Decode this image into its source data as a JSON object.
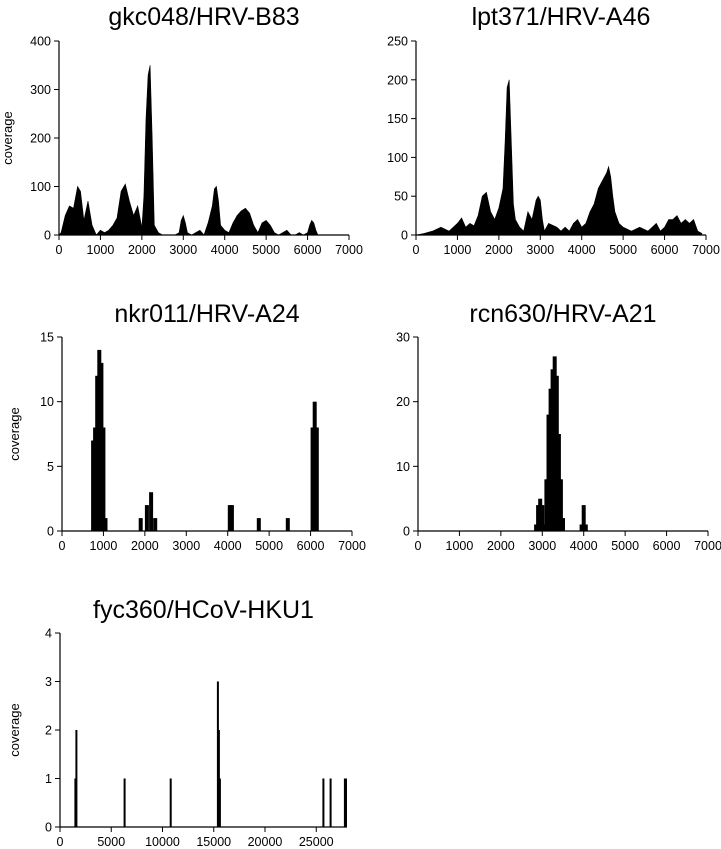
{
  "chart_data": [
    {
      "type": "area",
      "title": "gkc048/HRV-B83",
      "ylabel": "coverage",
      "xlim": [
        0,
        7000
      ],
      "ylim": [
        0,
        400
      ],
      "xticks": [
        "0",
        "1000",
        "2000",
        "3000",
        "4000",
        "5000",
        "6000",
        "7000"
      ],
      "yticks": [
        "0",
        "100",
        "200",
        "300",
        "400"
      ],
      "x": [
        0,
        50,
        150,
        250,
        350,
        450,
        520,
        600,
        700,
        800,
        900,
        1000,
        1100,
        1200,
        1300,
        1400,
        1500,
        1600,
        1700,
        1800,
        1900,
        2000,
        2050,
        2100,
        2150,
        2200,
        2250,
        2300,
        2400,
        2500,
        2600,
        2700,
        2800,
        2900,
        2950,
        3000,
        3050,
        3100,
        3200,
        3300,
        3400,
        3500,
        3600,
        3700,
        3750,
        3800,
        3850,
        3900,
        4000,
        4100,
        4200,
        4300,
        4400,
        4500,
        4600,
        4700,
        4800,
        4900,
        5000,
        5100,
        5200,
        5300,
        5400,
        5500,
        5600,
        5700,
        5800,
        5900,
        6000,
        6050,
        6100,
        6150,
        6200,
        6250,
        6300,
        6400,
        6500,
        6600,
        6700,
        6800,
        6900,
        7000
      ],
      "values": [
        0,
        5,
        40,
        60,
        55,
        100,
        90,
        30,
        70,
        20,
        0,
        10,
        5,
        10,
        20,
        35,
        90,
        105,
        70,
        40,
        60,
        15,
        80,
        240,
        330,
        350,
        200,
        20,
        5,
        0,
        0,
        0,
        0,
        5,
        30,
        40,
        25,
        5,
        0,
        5,
        10,
        0,
        25,
        60,
        95,
        100,
        70,
        20,
        10,
        5,
        25,
        40,
        50,
        55,
        45,
        20,
        5,
        25,
        30,
        20,
        5,
        0,
        5,
        10,
        0,
        0,
        5,
        0,
        5,
        20,
        30,
        25,
        10,
        0,
        0,
        0,
        0,
        0,
        0,
        0,
        0,
        0
      ]
    },
    {
      "type": "area",
      "title": "lpt371/HRV-A46",
      "ylabel": "",
      "xlim": [
        0,
        7000
      ],
      "ylim": [
        0,
        250
      ],
      "xticks": [
        "0",
        "1000",
        "2000",
        "3000",
        "4000",
        "5000",
        "6000",
        "7000"
      ],
      "yticks": [
        "0",
        "50",
        "100",
        "150",
        "200",
        "250"
      ],
      "x": [
        0,
        200,
        400,
        600,
        800,
        1000,
        1100,
        1200,
        1300,
        1400,
        1500,
        1600,
        1700,
        1800,
        1900,
        2000,
        2100,
        2150,
        2200,
        2250,
        2300,
        2350,
        2400,
        2500,
        2600,
        2700,
        2800,
        2900,
        2950,
        3000,
        3050,
        3100,
        3200,
        3400,
        3500,
        3600,
        3700,
        3800,
        3900,
        4000,
        4100,
        4200,
        4300,
        4400,
        4500,
        4600,
        4650,
        4700,
        4750,
        4800,
        4900,
        5000,
        5200,
        5400,
        5600,
        5800,
        5900,
        6000,
        6100,
        6200,
        6300,
        6400,
        6500,
        6600,
        6700,
        6800,
        6900
      ],
      "values": [
        0,
        2,
        5,
        10,
        5,
        15,
        22,
        10,
        15,
        12,
        25,
        50,
        55,
        30,
        20,
        35,
        60,
        120,
        190,
        200,
        120,
        40,
        20,
        10,
        5,
        30,
        20,
        45,
        50,
        45,
        20,
        5,
        15,
        10,
        5,
        10,
        5,
        15,
        20,
        10,
        15,
        30,
        40,
        60,
        70,
        80,
        88,
        75,
        50,
        30,
        15,
        10,
        5,
        10,
        5,
        15,
        5,
        10,
        20,
        20,
        25,
        15,
        20,
        15,
        20,
        5,
        2
      ]
    },
    {
      "type": "bar",
      "title": "nkr011/HRV-A24",
      "ylabel": "coverage",
      "xlim": [
        0,
        7000
      ],
      "ylim": [
        0,
        15
      ],
      "xticks": [
        "0",
        "1000",
        "2000",
        "3000",
        "4000",
        "5000",
        "6000",
        "7000"
      ],
      "yticks": [
        "0",
        "5",
        "10",
        "15"
      ],
      "x": [
        750,
        800,
        850,
        900,
        950,
        1000,
        1050,
        1900,
        2050,
        2150,
        2250,
        4050,
        4100,
        4750,
        5450,
        6050,
        6100,
        6150
      ],
      "values": [
        7,
        8,
        12,
        14,
        13,
        8,
        1,
        1,
        2,
        3,
        1,
        2,
        2,
        1,
        1,
        8,
        10,
        8
      ]
    },
    {
      "type": "bar",
      "title": "rcn630/HRV-A21",
      "ylabel": "",
      "xlim": [
        0,
        7000
      ],
      "ylim": [
        0,
        30
      ],
      "xticks": [
        "0",
        "1000",
        "2000",
        "3000",
        "4000",
        "5000",
        "6000",
        "7000"
      ],
      "yticks": [
        "0",
        "10",
        "20",
        "30"
      ],
      "x": [
        2850,
        2900,
        2950,
        3000,
        3050,
        3100,
        3150,
        3200,
        3250,
        3300,
        3350,
        3400,
        3450,
        3500,
        3950,
        4000,
        4050
      ],
      "values": [
        1,
        4,
        5,
        4,
        1,
        8,
        18,
        22,
        25,
        27,
        24,
        15,
        8,
        2,
        1,
        4,
        1
      ]
    },
    {
      "type": "bar",
      "title": "fyc360/HCoV-HKU1",
      "ylabel": "coverage",
      "xlim": [
        0,
        28000
      ],
      "ylim": [
        0,
        4
      ],
      "xticks": [
        "0",
        "5000",
        "10000",
        "15000",
        "20000",
        "25000"
      ],
      "yticks": [
        "0",
        "1",
        "2",
        "3",
        "4"
      ],
      "x": [
        1500,
        1600,
        6300,
        10800,
        15400,
        15500,
        15600,
        25700,
        26400,
        27800,
        27900
      ],
      "values": [
        1,
        2,
        1,
        1,
        3,
        2,
        1,
        1,
        1,
        1,
        1
      ]
    }
  ]
}
